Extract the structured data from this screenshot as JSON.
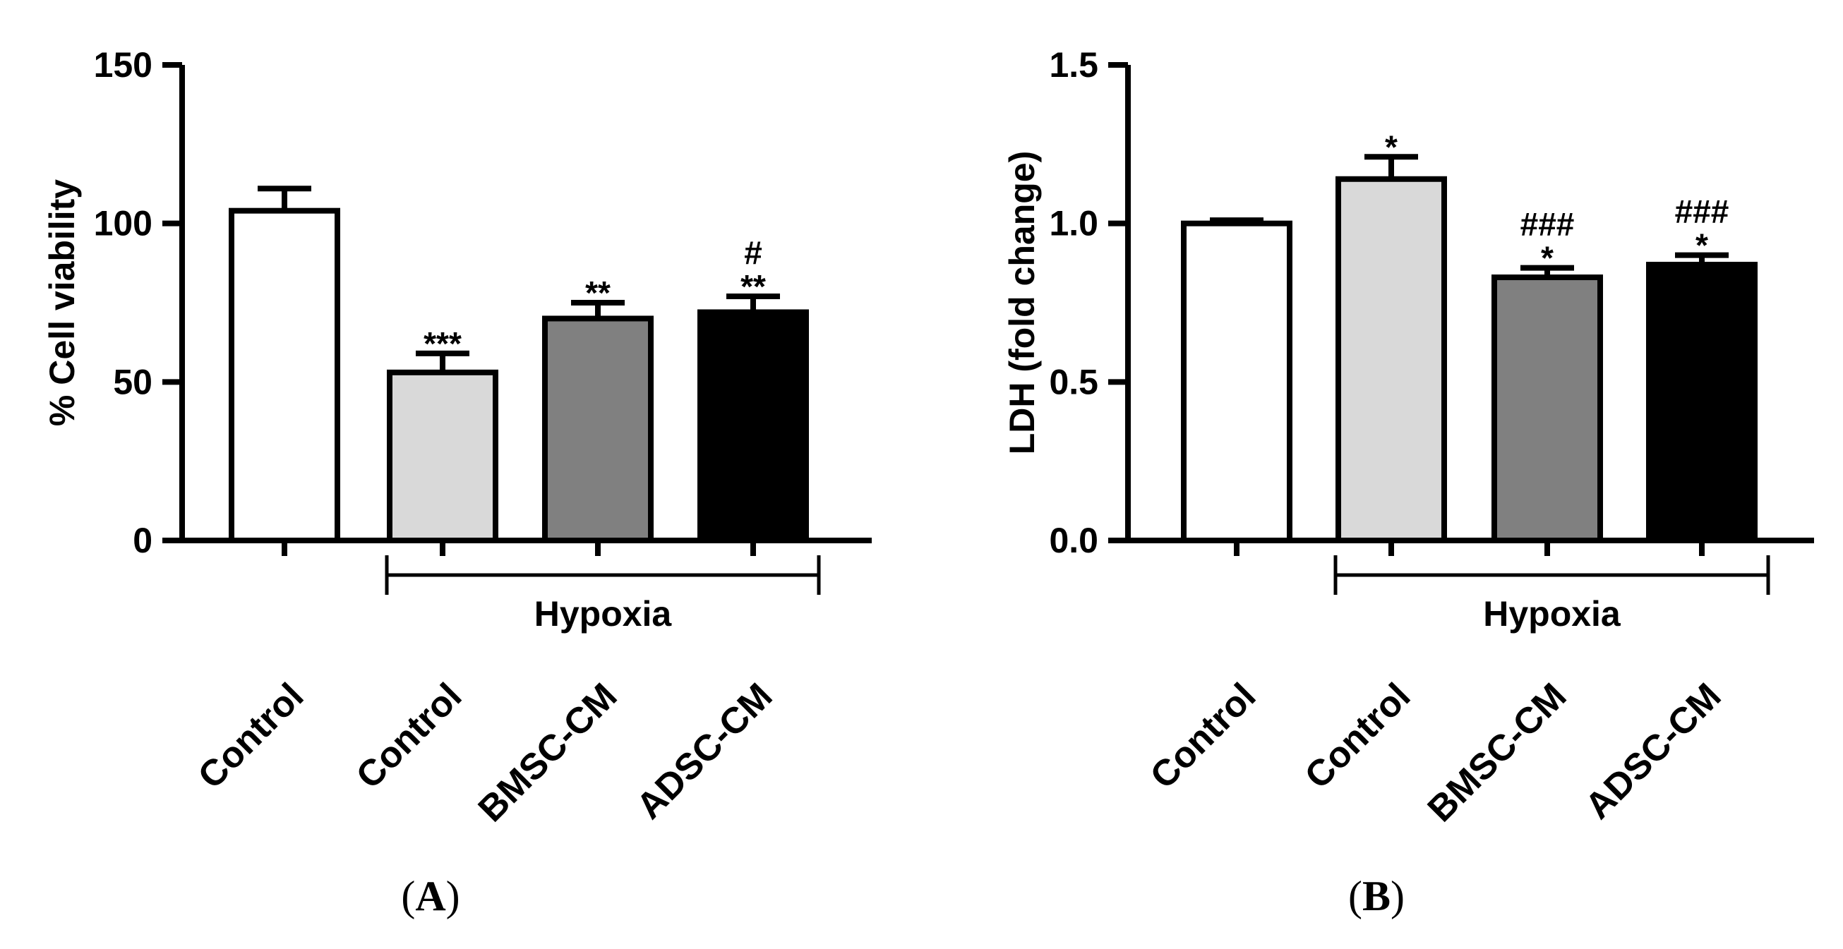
{
  "chart_data": [
    {
      "type": "bar",
      "panel_label": "A",
      "ylabel": "% Cell viability",
      "ylim": [
        0,
        150
      ],
      "yticks": [
        0,
        50,
        100,
        150
      ],
      "categories": [
        "Control",
        "Control",
        "BMSC-CM",
        "ADSC-CM"
      ],
      "values": [
        104,
        53,
        70,
        72
      ],
      "errors": [
        7,
        6,
        5,
        5
      ],
      "bar_colors": [
        "#ffffff",
        "#d9d9d9",
        "#808080",
        "#000000"
      ],
      "annotations": [
        [],
        [
          "***"
        ],
        [
          "**"
        ],
        [
          "**",
          "#"
        ]
      ],
      "group_label": "Hypoxia",
      "group_span": [
        1,
        3
      ]
    },
    {
      "type": "bar",
      "panel_label": "B",
      "ylabel": "LDH (fold change)",
      "ylim": [
        0,
        1.5
      ],
      "yticks": [
        "0.0",
        "0.5",
        "1.0",
        "1.5"
      ],
      "categories": [
        "Control",
        "Control",
        "BMSC-CM",
        "ADSC-CM"
      ],
      "values": [
        1.0,
        1.14,
        0.83,
        0.87
      ],
      "errors": [
        0.01,
        0.07,
        0.03,
        0.03
      ],
      "bar_colors": [
        "#ffffff",
        "#d9d9d9",
        "#808080",
        "#000000"
      ],
      "annotations": [
        [],
        [
          "*"
        ],
        [
          "*",
          "###"
        ],
        [
          "*",
          "###"
        ]
      ],
      "group_label": "Hypoxia",
      "group_span": [
        1,
        3
      ]
    }
  ]
}
